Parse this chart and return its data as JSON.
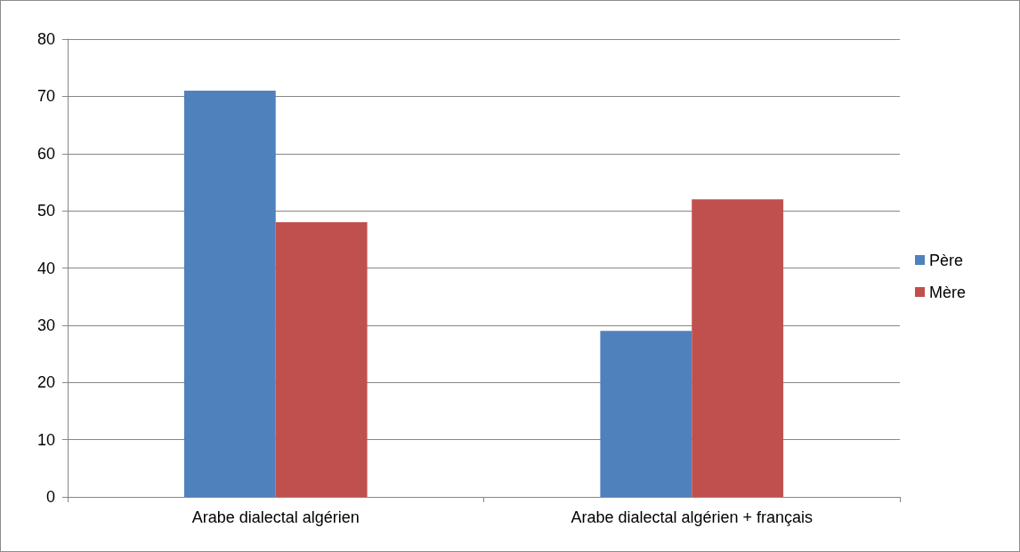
{
  "chart_data": {
    "type": "bar",
    "categories": [
      "Arabe dialectal algérien",
      "Arabe dialectal algérien + français"
    ],
    "series": [
      {
        "name": "Père",
        "color": "#4f81bd",
        "values": [
          71,
          29
        ]
      },
      {
        "name": "Mère",
        "color": "#c0504d",
        "values": [
          48,
          52
        ]
      }
    ],
    "ylim": [
      0,
      80
    ],
    "yticks": [
      0,
      10,
      20,
      30,
      40,
      50,
      60,
      70,
      80
    ],
    "grid": "y",
    "legend": "right"
  }
}
